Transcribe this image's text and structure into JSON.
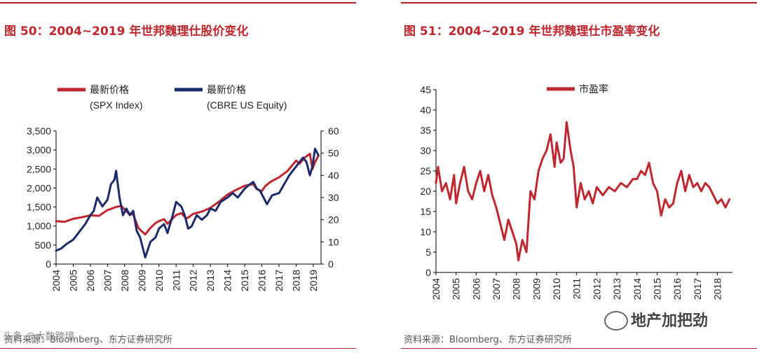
{
  "left_panel": {
    "title": "图 50：2004~2019 年世邦魏理仕股价变化",
    "source": "资料来源：Bloomberg、东方证券研究所"
  },
  "right_panel": {
    "title": "图 51：2004~2019 年世邦魏理仕市盈率变化",
    "source": "资料来源：Bloomberg、东方证券研究所"
  },
  "watermark": {
    "text": "地产加把劲",
    "left_overlay": "头条 @大数跨境"
  },
  "colors": {
    "red": "#c0262d",
    "navy": "#1b2a6b"
  },
  "chart_data": [
    {
      "type": "line",
      "title": "图 50：2004~2019 年世邦魏理仕股价变化",
      "categories": [
        "2004",
        "2005",
        "2006",
        "2007",
        "2008",
        "2009",
        "2010",
        "2011",
        "2012",
        "2013",
        "2014",
        "2015",
        "2016",
        "2017",
        "2018",
        "2019"
      ],
      "y_left": {
        "ticks": [
          "0",
          "500",
          "1,000",
          "1,500",
          "2,000",
          "2,500",
          "3,000",
          "3,500"
        ],
        "ylim": [
          0,
          3500
        ]
      },
      "y_right": {
        "ticks": [
          "0",
          "10",
          "20",
          "30",
          "40",
          "50",
          "60"
        ],
        "ylim": [
          0,
          60
        ]
      },
      "series": [
        {
          "name": "最新价格",
          "name2": "(SPX Index)",
          "axis": "left",
          "color": "#c0262d",
          "x": [
            2004.0,
            2004.5,
            2005.0,
            2005.5,
            2006.0,
            2006.5,
            2007.0,
            2007.5,
            2007.8,
            2008.2,
            2008.5,
            2008.8,
            2009.0,
            2009.2,
            2009.5,
            2009.8,
            2010.0,
            2010.3,
            2010.5,
            2010.8,
            2011.0,
            2011.3,
            2011.6,
            2011.8,
            2012.0,
            2012.5,
            2013.0,
            2013.5,
            2014.0,
            2014.5,
            2015.0,
            2015.5,
            2015.7,
            2016.0,
            2016.2,
            2016.5,
            2017.0,
            2017.5,
            2018.0,
            2018.2,
            2018.5,
            2018.8,
            2018.95,
            2019.1,
            2019.3
          ],
          "values": [
            1130,
            1110,
            1190,
            1230,
            1280,
            1270,
            1420,
            1500,
            1530,
            1340,
            1300,
            950,
            860,
            780,
            950,
            1080,
            1130,
            1180,
            1060,
            1200,
            1290,
            1340,
            1200,
            1250,
            1320,
            1380,
            1480,
            1640,
            1830,
            1950,
            2060,
            2100,
            1970,
            1920,
            2050,
            2160,
            2280,
            2450,
            2720,
            2640,
            2800,
            2900,
            2500,
            2680,
            2850
          ]
        },
        {
          "name": "最新价格",
          "name2": "(CBRE US Equity)",
          "axis": "right",
          "color": "#1b2a6b",
          "x": [
            2004.0,
            2004.3,
            2004.6,
            2005.0,
            2005.3,
            2005.7,
            2006.0,
            2006.2,
            2006.4,
            2006.7,
            2007.0,
            2007.2,
            2007.4,
            2007.5,
            2007.7,
            2007.9,
            2008.1,
            2008.3,
            2008.5,
            2008.7,
            2008.9,
            2009.0,
            2009.2,
            2009.5,
            2009.8,
            2010.0,
            2010.3,
            2010.5,
            2010.8,
            2011.0,
            2011.3,
            2011.5,
            2011.7,
            2011.9,
            2012.2,
            2012.5,
            2012.8,
            2013.0,
            2013.3,
            2013.6,
            2014.0,
            2014.3,
            2014.6,
            2015.0,
            2015.3,
            2015.5,
            2015.7,
            2015.9,
            2016.1,
            2016.3,
            2016.6,
            2017.0,
            2017.3,
            2017.6,
            2018.0,
            2018.2,
            2018.4,
            2018.6,
            2018.8,
            2018.95,
            2019.1,
            2019.3
          ],
          "values": [
            6,
            7,
            9,
            11,
            14,
            18,
            22,
            24,
            30,
            26,
            29,
            36,
            38,
            42,
            30,
            22,
            25,
            22,
            24,
            15,
            12,
            9,
            3,
            10,
            12,
            16,
            18,
            14,
            22,
            28,
            26,
            22,
            16,
            17,
            22,
            20,
            22,
            25,
            24,
            28,
            30,
            32,
            30,
            34,
            36,
            37,
            34,
            33,
            30,
            27,
            31,
            32,
            36,
            40,
            44,
            46,
            48,
            46,
            40,
            44,
            52,
            49
          ]
        }
      ]
    },
    {
      "type": "line",
      "title": "图 51：2004~2019 年世邦魏理仕市盈率变化",
      "categories": [
        "2004",
        "2005",
        "2006",
        "2007",
        "2008",
        "2009",
        "2010",
        "2011",
        "2012",
        "2013",
        "2014",
        "2015",
        "2016",
        "2017",
        "2018"
      ],
      "y_left": {
        "ticks": [
          "0",
          "5",
          "10",
          "15",
          "20",
          "25",
          "30",
          "35",
          "40",
          "45"
        ],
        "ylim": [
          0,
          45
        ]
      },
      "series": [
        {
          "name": "市盈率",
          "color": "#c0262d",
          "x": [
            2004.0,
            2004.1,
            2004.3,
            2004.5,
            2004.7,
            2004.9,
            2005.0,
            2005.2,
            2005.4,
            2005.6,
            2005.8,
            2006.0,
            2006.2,
            2006.4,
            2006.6,
            2006.8,
            2007.0,
            2007.2,
            2007.4,
            2007.6,
            2007.8,
            2008.0,
            2008.1,
            2008.3,
            2008.5,
            2008.7,
            2008.9,
            2009.1,
            2009.3,
            2009.5,
            2009.7,
            2009.9,
            2010.0,
            2010.2,
            2010.35,
            2010.5,
            2010.7,
            2010.85,
            2011.0,
            2011.2,
            2011.4,
            2011.6,
            2011.8,
            2012.0,
            2012.3,
            2012.6,
            2012.9,
            2013.2,
            2013.5,
            2013.8,
            2014.0,
            2014.2,
            2014.4,
            2014.6,
            2014.8,
            2015.0,
            2015.2,
            2015.4,
            2015.6,
            2015.8,
            2016.0,
            2016.2,
            2016.4,
            2016.6,
            2016.8,
            2017.0,
            2017.2,
            2017.4,
            2017.6,
            2017.8,
            2018.0,
            2018.2,
            2018.4,
            2018.6
          ],
          "values": [
            22,
            26,
            20,
            22,
            18,
            24,
            17,
            22,
            26,
            20,
            18,
            22,
            25,
            20,
            24,
            19,
            16,
            12,
            8,
            13,
            10,
            7,
            3,
            8,
            5,
            20,
            18,
            25,
            28,
            30,
            34,
            26,
            32,
            27,
            28,
            37,
            30,
            26,
            16,
            22,
            18,
            20,
            17,
            21,
            19,
            21,
            20,
            22,
            21,
            23,
            23,
            25,
            24,
            27,
            22,
            20,
            14,
            18,
            16,
            17,
            22,
            25,
            20,
            24,
            21,
            22,
            20,
            22,
            21,
            19,
            17,
            18,
            16,
            18
          ]
        }
      ]
    }
  ]
}
